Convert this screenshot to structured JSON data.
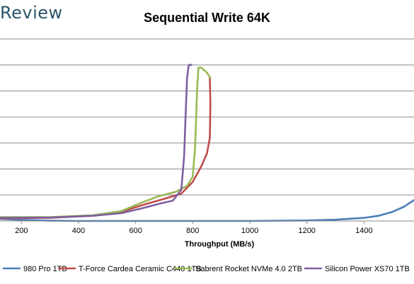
{
  "header": {
    "logo_text": "Review"
  },
  "chart_data": {
    "type": "line",
    "title": "Sequential Write 64K",
    "xlabel": "Throughput (MB/s)",
    "ylabel": "",
    "xlim": [
      125,
      1575
    ],
    "ylim": [
      0,
      7
    ],
    "xticks": [
      200,
      400,
      600,
      800,
      1000,
      1200,
      1400
    ],
    "grid": true,
    "legend_position": "bottom",
    "series": [
      {
        "name": "980 Pro 1TB",
        "color": "#4a7ebb",
        "x": [
          125,
          200,
          300,
          400,
          600,
          800,
          1000,
          1200,
          1300,
          1400,
          1450,
          1500,
          1540,
          1575
        ],
        "y": [
          0.08,
          0.04,
          0.01,
          0.0,
          0.0,
          0.0,
          0.0,
          0.02,
          0.05,
          0.12,
          0.2,
          0.35,
          0.55,
          0.8
        ]
      },
      {
        "name": "T-Force Cardea Ceramic C440 1TB",
        "color": "#be4b48",
        "x": [
          125,
          300,
          450,
          550,
          620,
          700,
          760,
          800,
          830,
          850,
          860,
          862,
          860
        ],
        "y": [
          0.1,
          0.12,
          0.2,
          0.35,
          0.6,
          0.85,
          1.05,
          1.5,
          2.1,
          2.6,
          3.2,
          4.5,
          5.5
        ]
      },
      {
        "name": "Sabrent Rocket NVMe 4.0 2TB",
        "color": "#98b954",
        "x": [
          125,
          300,
          450,
          550,
          620,
          680,
          740,
          780,
          800,
          808,
          812,
          815,
          820,
          830,
          850,
          862
        ],
        "y": [
          0.15,
          0.15,
          0.22,
          0.38,
          0.7,
          0.95,
          1.12,
          1.35,
          1.7,
          2.8,
          4.0,
          5.0,
          5.9,
          5.9,
          5.7,
          5.5
        ]
      },
      {
        "name": "Silicon Power XS70 1TB",
        "color": "#7d60a0",
        "x": [
          125,
          300,
          450,
          550,
          620,
          690,
          730,
          760,
          770,
          775,
          780,
          786,
          795
        ],
        "y": [
          0.12,
          0.13,
          0.2,
          0.3,
          0.48,
          0.68,
          0.78,
          1.2,
          2.5,
          4.0,
          5.5,
          6.0,
          6.0
        ]
      }
    ]
  }
}
